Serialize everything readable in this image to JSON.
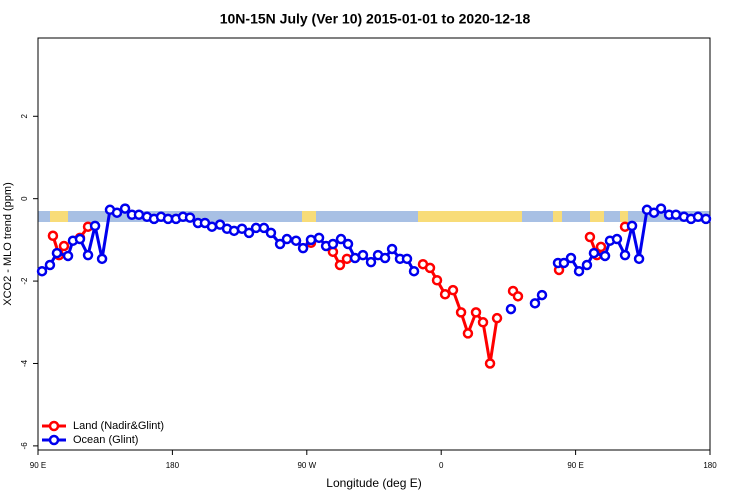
{
  "chart_data": {
    "type": "line",
    "title": "10N-15N July (Ver 10)   2015-01-01 to 2020-12-18",
    "x_label": "Longitude (deg E)",
    "y_label": "XCO2 - MLO trend (ppm)",
    "xlim": [
      90,
      540
    ],
    "xticks": [
      {
        "value": 90,
        "label": "90 E"
      },
      180,
      {
        "value": 270,
        "label": "90 W"
      },
      {
        "value": 360,
        "label": "0"
      },
      {
        "value": 450,
        "label": "90 E"
      },
      {
        "value": 540,
        "label": "180"
      }
    ],
    "ylim": [
      -6.1,
      3.9
    ],
    "yticks": [
      -6,
      -4,
      -2,
      0,
      2
    ],
    "legend": "bottom-left",
    "series": [
      {
        "name": "Land (Nadir&Glint)",
        "color": "#ff0000",
        "x": [
          100.0,
          104.1,
          107.4,
          null,
          118.1,
          123.5,
          null,
          272.8,
          null,
          287.5,
          292.2,
          296.9,
          null,
          347.8,
          352.5,
          357.2,
          362.6,
          367.9,
          373.3,
          377.9,
          383.3,
          388.0,
          392.7,
          397.4,
          null,
          408.1,
          411.4,
          null,
          438.9,
          null,
          459.6,
          464.3,
          467.0,
          null,
          483.1
        ],
        "values": [
          -0.9,
          -1.37,
          -1.15,
          null,
          -0.95,
          -0.68,
          null,
          -1.07,
          null,
          -1.29,
          -1.61,
          -1.46,
          null,
          -1.59,
          -1.68,
          -1.98,
          -2.32,
          -2.22,
          -2.76,
          -3.27,
          -2.76,
          -3.0,
          -4.0,
          -2.9,
          null,
          -2.24,
          -2.37,
          null,
          -1.73,
          null,
          -0.93,
          -1.37,
          -1.17,
          null,
          -0.68
        ]
      },
      {
        "name": "Ocean (Glint)",
        "color": "#0000ee",
        "x": [
          92.7,
          98.0,
          102.7,
          110.1,
          113.4,
          118.1,
          123.5,
          128.2,
          132.9,
          138.2,
          142.9,
          148.3,
          152.9,
          157.6,
          163.0,
          167.7,
          172.4,
          177.1,
          182.4,
          187.1,
          191.8,
          197.1,
          201.8,
          206.5,
          211.9,
          216.6,
          221.3,
          226.6,
          231.3,
          236.0,
          241.3,
          246.0,
          252.1,
          256.7,
          262.8,
          267.5,
          272.8,
          278.2,
          282.9,
          287.5,
          292.9,
          297.6,
          302.3,
          307.6,
          313.0,
          317.7,
          322.4,
          327.1,
          332.4,
          337.1,
          341.8,
          null,
          406.7,
          null,
          422.8,
          427.5,
          null,
          438.2,
          442.2,
          446.9,
          452.3,
          457.6,
          462.3,
          469.7,
          473.0,
          477.7,
          483.1,
          487.8,
          492.5,
          497.8,
          502.5,
          507.2,
          512.6,
          517.2,
          522.6,
          527.3,
          532.0,
          537.3
        ],
        "values": [
          -1.76,
          -1.61,
          -1.32,
          -1.39,
          -1.02,
          -0.98,
          -1.37,
          -0.66,
          -1.46,
          -0.27,
          -0.34,
          -0.24,
          -0.39,
          -0.39,
          -0.44,
          -0.49,
          -0.44,
          -0.49,
          -0.49,
          -0.44,
          -0.46,
          -0.59,
          -0.59,
          -0.68,
          -0.63,
          -0.73,
          -0.78,
          -0.73,
          -0.83,
          -0.71,
          -0.71,
          -0.83,
          -1.1,
          -0.98,
          -1.02,
          -1.2,
          -1.0,
          -0.95,
          -1.15,
          -1.1,
          -0.98,
          -1.1,
          -1.44,
          -1.37,
          -1.54,
          -1.37,
          -1.44,
          -1.22,
          -1.46,
          -1.46,
          -1.76,
          null,
          -2.68,
          null,
          -2.54,
          -2.34,
          null,
          -1.56,
          -1.56,
          -1.44,
          -1.76,
          -1.61,
          -1.32,
          -1.39,
          -1.02,
          -0.98,
          -1.37,
          -0.66,
          -1.46,
          -0.27,
          -0.34,
          -0.24,
          -0.39,
          -0.39,
          -0.44,
          -0.49,
          -0.44,
          -0.49
        ]
      }
    ]
  }
}
